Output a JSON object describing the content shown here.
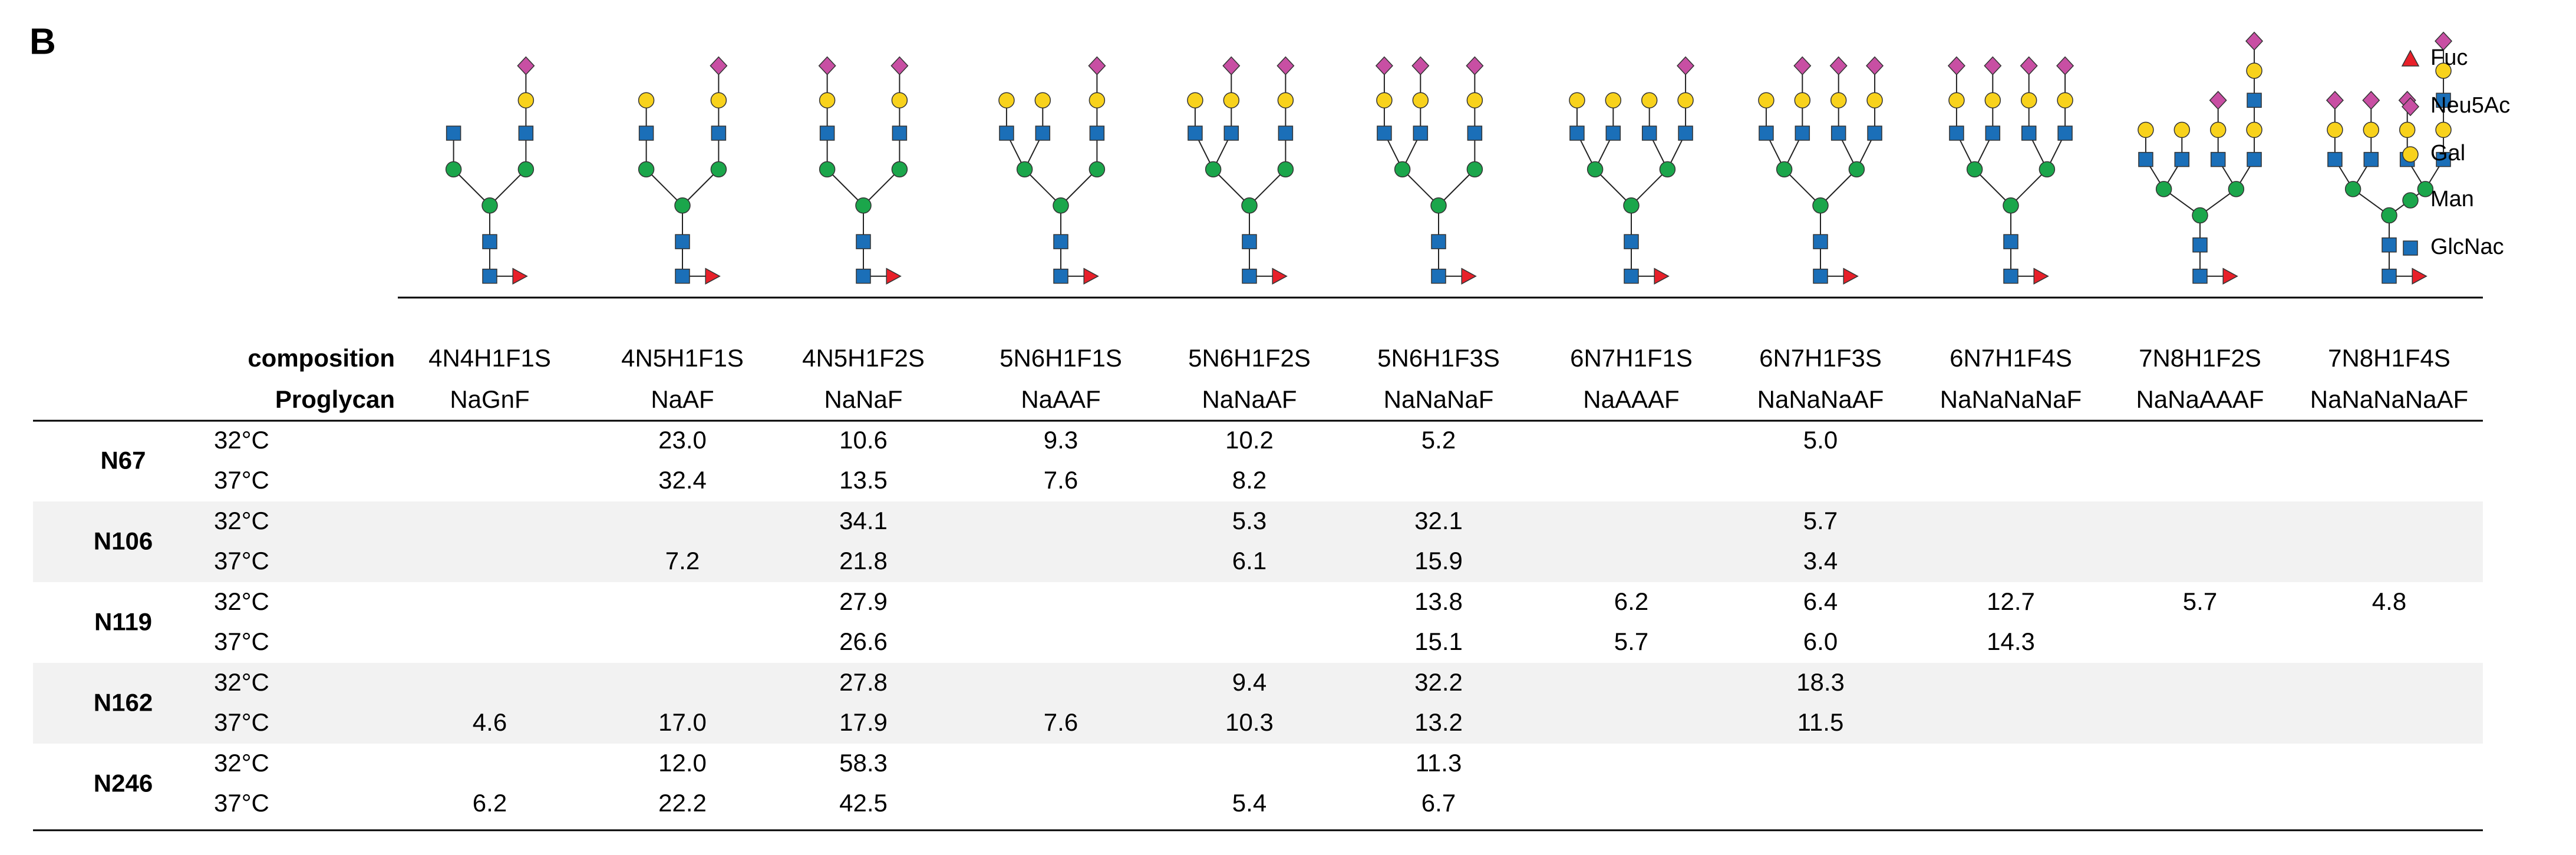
{
  "panel_label": "B",
  "legend": [
    "Fuc",
    "Neu5Ac",
    "Gal",
    "Man",
    "GlcNac"
  ],
  "table": {
    "header_labels": [
      "composition",
      "Proglycan"
    ],
    "columns": [
      {
        "composition": "4N4H1F1S",
        "proglycan": "NaGnF"
      },
      {
        "composition": "4N5H1F1S",
        "proglycan": "NaAF"
      },
      {
        "composition": "4N5H1F2S",
        "proglycan": "NaNaF"
      },
      {
        "composition": "5N6H1F1S",
        "proglycan": "NaAAF"
      },
      {
        "composition": "5N6H1F2S",
        "proglycan": "NaNaAF"
      },
      {
        "composition": "5N6H1F3S",
        "proglycan": "NaNaNaF"
      },
      {
        "composition": "6N7H1F1S",
        "proglycan": "NaAAAF"
      },
      {
        "composition": "6N7H1F3S",
        "proglycan": "NaNaNaAF"
      },
      {
        "composition": "6N7H1F4S",
        "proglycan": "NaNaNaNaF"
      },
      {
        "composition": "7N8H1F2S",
        "proglycan": "NaNaAAAF"
      },
      {
        "composition": "7N8H1F4S",
        "proglycan": "NaNaNaNaAF"
      }
    ],
    "rows": [
      {
        "site": "N67",
        "entries": [
          {
            "temp": "32°C",
            "values": [
              null,
              "23.0",
              "10.6",
              "9.3",
              "10.2",
              "5.2",
              null,
              "5.0",
              null,
              null,
              null
            ]
          },
          {
            "temp": "37°C",
            "values": [
              null,
              "32.4",
              "13.5",
              "7.6",
              "8.2",
              null,
              null,
              null,
              null,
              null,
              null
            ]
          }
        ]
      },
      {
        "site": "N106",
        "entries": [
          {
            "temp": "32°C",
            "values": [
              null,
              null,
              "34.1",
              null,
              "5.3",
              "32.1",
              null,
              "5.7",
              null,
              null,
              null
            ]
          },
          {
            "temp": "37°C",
            "values": [
              null,
              "7.2",
              "21.8",
              null,
              "6.1",
              "15.9",
              null,
              "3.4",
              null,
              null,
              null
            ]
          }
        ]
      },
      {
        "site": "N119",
        "entries": [
          {
            "temp": "32°C",
            "values": [
              null,
              null,
              "27.9",
              null,
              null,
              "13.8",
              "6.2",
              "6.4",
              "12.7",
              "5.7",
              "4.8"
            ]
          },
          {
            "temp": "37°C",
            "values": [
              null,
              null,
              "26.6",
              null,
              null,
              "15.1",
              "5.7",
              "6.0",
              "14.3",
              null,
              null
            ]
          }
        ]
      },
      {
        "site": "N162",
        "entries": [
          {
            "temp": "32°C",
            "values": [
              null,
              null,
              "27.8",
              null,
              "9.4",
              "32.2",
              null,
              "18.3",
              null,
              null,
              null
            ]
          },
          {
            "temp": "37°C",
            "values": [
              "4.6",
              "17.0",
              "17.9",
              "7.6",
              "10.3",
              "13.2",
              null,
              "11.5",
              null,
              null,
              null
            ]
          }
        ]
      },
      {
        "site": "N246",
        "entries": [
          {
            "temp": "32°C",
            "values": [
              null,
              "12.0",
              "58.3",
              null,
              null,
              "11.3",
              null,
              null,
              null,
              null,
              null
            ]
          },
          {
            "temp": "37°C",
            "values": [
              "6.2",
              "22.2",
              "42.5",
              null,
              "5.4",
              "6.7",
              null,
              null,
              null,
              null,
              null
            ]
          }
        ]
      }
    ]
  }
}
